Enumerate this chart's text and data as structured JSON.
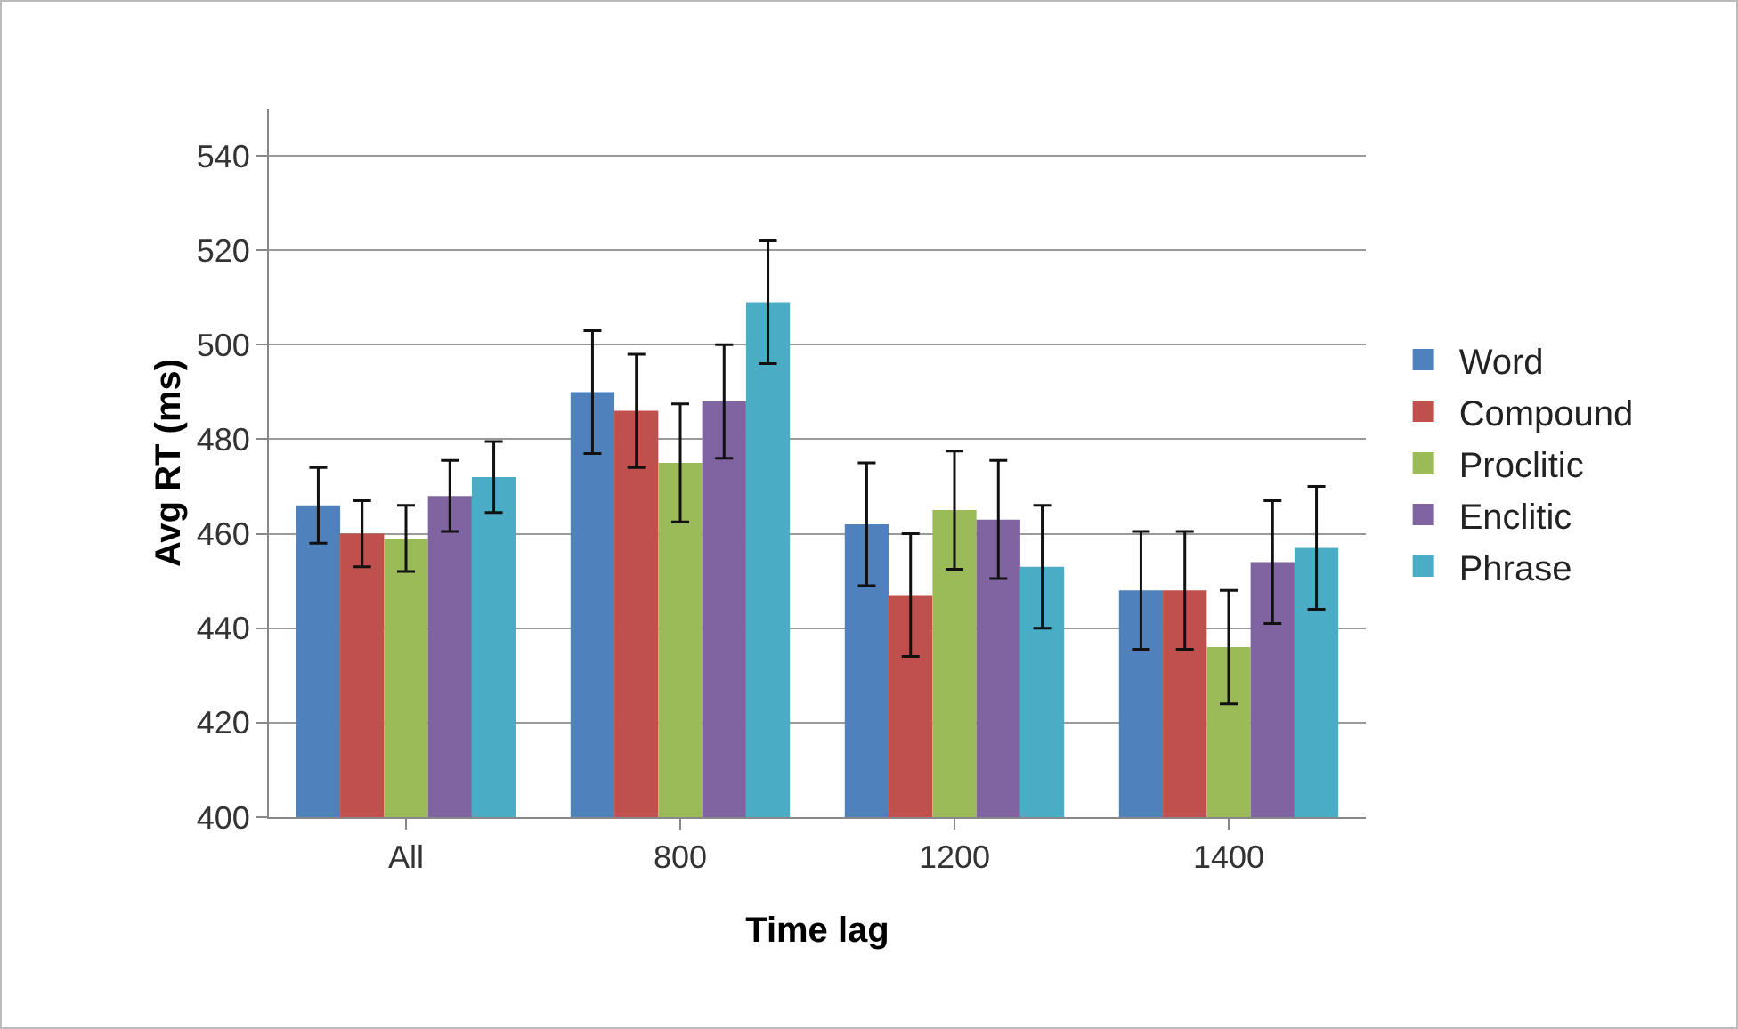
{
  "chart_data": {
    "type": "bar",
    "xlabel": "Time lag",
    "ylabel": "Avg RT (ms)",
    "categories": [
      "All",
      "800",
      "1200",
      "1400"
    ],
    "series": [
      {
        "name": "Word",
        "color": "#4f81bd",
        "values": [
          466,
          490,
          462,
          448
        ],
        "errors": [
          8,
          13,
          13,
          12.5
        ]
      },
      {
        "name": "Compound",
        "color": "#c0504d",
        "values": [
          460,
          486,
          447,
          448
        ],
        "errors": [
          7,
          12,
          13,
          12.5
        ]
      },
      {
        "name": "Proclitic",
        "color": "#9bbb59",
        "values": [
          459,
          475,
          465,
          436
        ],
        "errors": [
          7,
          12.5,
          12.5,
          12
        ]
      },
      {
        "name": "Enclitic",
        "color": "#8064a2",
        "values": [
          468,
          488,
          463,
          454
        ],
        "errors": [
          7.5,
          12,
          12.5,
          13
        ]
      },
      {
        "name": "Phrase",
        "color": "#4bacc6",
        "values": [
          472,
          509,
          453,
          457
        ],
        "errors": [
          7.5,
          13,
          13,
          13
        ]
      }
    ],
    "ylim": [
      400,
      550
    ],
    "yticks": [
      400,
      420,
      440,
      460,
      480,
      500,
      520,
      540
    ],
    "grid": "y",
    "legend": "right"
  }
}
